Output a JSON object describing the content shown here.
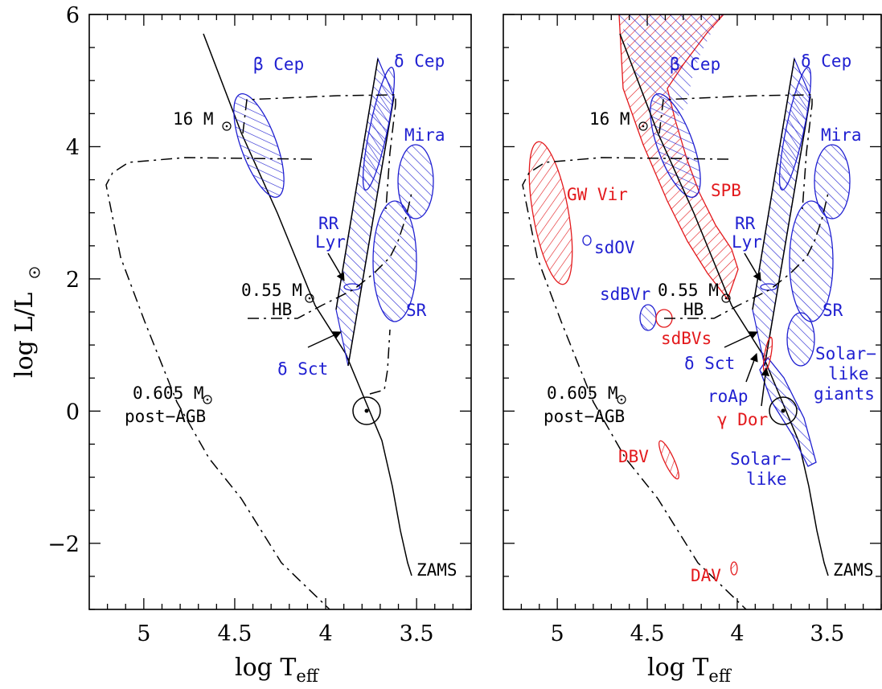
{
  "chart_data": [
    {
      "type": "scatter",
      "panel": "left",
      "xlabel": "log T_eff",
      "ylabel": "log L/L_sun",
      "xlim": [
        5.3,
        3.2
      ],
      "ylim": [
        -3,
        6
      ],
      "x_reversed": true,
      "xticks": [
        "5",
        "4.5",
        "4",
        "3.5"
      ],
      "yticks": [
        "6",
        "4",
        "2",
        "0",
        "−2"
      ],
      "tracks": [
        {
          "name": "ZAMS",
          "style": "solid"
        },
        {
          "name": "16 M_sun",
          "style": "dash-dot"
        },
        {
          "name": "0.55 M_sun HB",
          "style": "dash-dot"
        },
        {
          "name": "0.605 M_sun post-AGB",
          "style": "dash-dot"
        }
      ],
      "regions": [
        {
          "name": "β Cep",
          "color": "#1f1fd1"
        },
        {
          "name": "δ Cep",
          "color": "#1f1fd1"
        },
        {
          "name": "Mira",
          "color": "#1f1fd1"
        },
        {
          "name": "SR",
          "color": "#1f1fd1"
        },
        {
          "name": "RR Lyr",
          "color": "#1f1fd1"
        },
        {
          "name": "δ Sct",
          "color": "#1f1fd1"
        }
      ],
      "sun": {
        "logT": 3.76,
        "logL": 0.0
      }
    },
    {
      "type": "scatter",
      "panel": "right",
      "xlabel": "log T_eff",
      "ylabel": "",
      "xlim": [
        5.3,
        3.2
      ],
      "ylim": [
        -3,
        6
      ],
      "x_reversed": true,
      "xticks": [
        "5",
        "4.5",
        "4",
        "3.5"
      ],
      "tracks": [
        {
          "name": "ZAMS",
          "style": "solid"
        },
        {
          "name": "16 M_sun",
          "style": "dash-dot"
        },
        {
          "name": "0.55 M_sun HB",
          "style": "dash-dot"
        },
        {
          "name": "0.605 M_sun post-AGB",
          "style": "dash-dot"
        }
      ],
      "regions": [
        {
          "name": "β Cep",
          "color": "#1f1fd1"
        },
        {
          "name": "δ Cep",
          "color": "#1f1fd1"
        },
        {
          "name": "Mira",
          "color": "#1f1fd1"
        },
        {
          "name": "SR",
          "color": "#1f1fd1"
        },
        {
          "name": "RR Lyr",
          "color": "#1f1fd1"
        },
        {
          "name": "δ Sct",
          "color": "#1f1fd1"
        },
        {
          "name": "sdOV",
          "color": "#1f1fd1"
        },
        {
          "name": "sdBVr",
          "color": "#1f1fd1"
        },
        {
          "name": "Solar-like giants",
          "color": "#1f1fd1"
        },
        {
          "name": "Solar-like",
          "color": "#1f1fd1"
        },
        {
          "name": "roAp",
          "color": "#1f1fd1"
        },
        {
          "name": "GW Vir",
          "color": "#e3191c"
        },
        {
          "name": "SPB",
          "color": "#e3191c"
        },
        {
          "name": "sdBVs",
          "color": "#e3191c"
        },
        {
          "name": "γ Dor",
          "color": "#e3191c"
        },
        {
          "name": "DBV",
          "color": "#e3191c"
        },
        {
          "name": "DAV",
          "color": "#e3191c"
        }
      ],
      "sun": {
        "logT": 3.76,
        "logL": 0.0
      }
    }
  ],
  "axes": {
    "y_label_main": "log L/L",
    "x_label_main": "log T",
    "x_label_sub": "eff",
    "ytick_labels": [
      "6",
      "4",
      "2",
      "0",
      "−2"
    ],
    "xtick_labels": [
      "5",
      "4.5",
      "4",
      "3.5"
    ]
  },
  "labels": {
    "beta_cep": "β Cep",
    "delta_cep": "δ Cep",
    "mira": "Mira",
    "sr": "SR",
    "rr": "RR",
    "lyr": "Lyr",
    "delta_sct": "δ Sct",
    "m16": "16 M",
    "m055": "0.55 M",
    "hb": "HB",
    "m0605": "0.605 M",
    "post_agb": "post−AGB",
    "zams": "ZAMS",
    "gw_vir": "GW Vir",
    "spb": "SPB",
    "sdov": "sdOV",
    "sdbvr": "sdBVr",
    "sdbvs": "sdBVs",
    "solar_like_giants_1": "Solar−",
    "solar_like_giants_2": "like",
    "solar_like_giants_3": "giants",
    "roap": "roAp",
    "gamma_dor": "γ Dor",
    "solar_like_1": "Solar−",
    "solar_like_2": "like",
    "dbv": "DBV",
    "dav": "DAV"
  },
  "colors": {
    "blue": "#1f1fd1",
    "red": "#e3191c",
    "black": "#000000"
  }
}
